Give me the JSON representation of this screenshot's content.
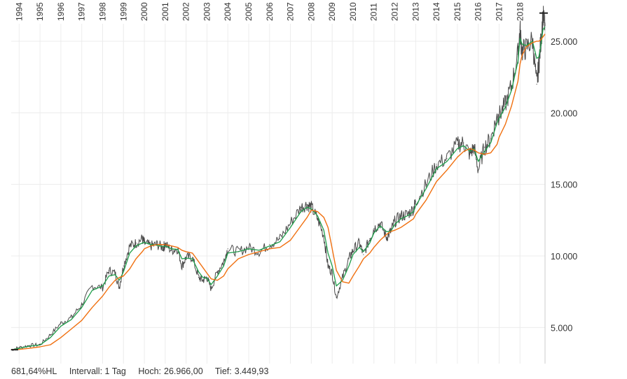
{
  "chart_data": {
    "type": "line",
    "title": "",
    "xlabel": "",
    "ylabel": "",
    "x_ticks": [
      "1994",
      "1995",
      "1996",
      "1997",
      "1998",
      "1999",
      "2000",
      "2001",
      "2002",
      "2003",
      "2004",
      "2005",
      "2006",
      "2007",
      "2008",
      "2009",
      "2010",
      "2011",
      "2012",
      "2013",
      "2014",
      "2015",
      "2016",
      "2017",
      "2018"
    ],
    "y_ticks": [
      "5.000",
      "10.000",
      "15.000",
      "20.000",
      "25.000"
    ],
    "y_tick_values": [
      5000,
      10000,
      15000,
      20000,
      25000
    ],
    "xlim": [
      1993.62,
      2019.2
    ],
    "ylim": [
      2480,
      27000
    ],
    "grid": true,
    "colors": {
      "price": "#4a4a4a",
      "sma_short": "#1e9e4a",
      "sma_long": "#f07010",
      "grid": "#ececec",
      "axis": "#222222"
    },
    "series": [
      {
        "key": "price",
        "x": [
          1993.62,
          1994.0,
          1994.5,
          1995.0,
          1995.5,
          1996.0,
          1996.5,
          1997.0,
          1997.5,
          1998.0,
          1998.3,
          1998.6,
          1998.8,
          1999.0,
          1999.3,
          1999.6,
          1999.9,
          2000.0,
          2000.3,
          2000.6,
          2000.9,
          2001.0,
          2001.3,
          2001.6,
          2001.8,
          2002.0,
          2002.3,
          2002.6,
          2002.8,
          2003.0,
          2003.2,
          2003.5,
          2003.8,
          2004.0,
          2004.5,
          2005.0,
          2005.5,
          2006.0,
          2006.5,
          2007.0,
          2007.5,
          2007.8,
          2008.0,
          2008.3,
          2008.6,
          2008.8,
          2009.0,
          2009.2,
          2009.5,
          2009.8,
          2010.0,
          2010.3,
          2010.5,
          2010.8,
          2011.0,
          2011.3,
          2011.6,
          2011.8,
          2012.0,
          2012.3,
          2012.6,
          2012.9,
          2013.0,
          2013.5,
          2014.0,
          2014.5,
          2015.0,
          2015.3,
          2015.6,
          2015.8,
          2016.0,
          2016.3,
          2016.6,
          2016.9,
          2017.0,
          2017.3,
          2017.6,
          2017.9,
          2018.0,
          2018.1,
          2018.3,
          2018.6,
          2018.8,
          2018.9,
          2019.0,
          2019.1,
          2019.2
        ],
        "y": [
          3450,
          3600,
          3750,
          3800,
          4500,
          5300,
          5700,
          6600,
          7900,
          7800,
          9000,
          8800,
          7800,
          9300,
          10700,
          10900,
          11200,
          10900,
          10700,
          10800,
          10600,
          10800,
          10400,
          10500,
          9300,
          9900,
          9900,
          8500,
          8300,
          8500,
          7700,
          8900,
          9600,
          10500,
          10300,
          10600,
          10300,
          10800,
          11200,
          12300,
          13400,
          13600,
          13400,
          12600,
          11400,
          9300,
          8800,
          7100,
          8500,
          9800,
          10400,
          10900,
          10100,
          11200,
          11900,
          12300,
          11300,
          11700,
          12400,
          12800,
          12900,
          13300,
          13800,
          15000,
          16400,
          16800,
          17800,
          17900,
          17100,
          17600,
          16000,
          17600,
          18200,
          19700,
          19800,
          20600,
          21900,
          24100,
          25800,
          24300,
          24500,
          25100,
          22000,
          23300,
          25000,
          26700,
          26100
        ]
      },
      {
        "key": "sma_short",
        "x": [
          1993.62,
          1994.0,
          1994.5,
          1995.0,
          1995.5,
          1996.0,
          1996.5,
          1997.0,
          1997.5,
          1998.0,
          1998.3,
          1998.6,
          1998.8,
          1999.0,
          1999.3,
          1999.6,
          1999.9,
          2000.0,
          2000.3,
          2000.6,
          2000.9,
          2001.0,
          2001.3,
          2001.6,
          2001.8,
          2002.0,
          2002.3,
          2002.6,
          2002.8,
          2003.0,
          2003.2,
          2003.5,
          2003.8,
          2004.0,
          2004.5,
          2005.0,
          2005.5,
          2006.0,
          2006.5,
          2007.0,
          2007.5,
          2007.8,
          2008.0,
          2008.3,
          2008.6,
          2008.8,
          2009.0,
          2009.2,
          2009.5,
          2009.8,
          2010.0,
          2010.3,
          2010.5,
          2010.8,
          2011.0,
          2011.3,
          2011.6,
          2011.8,
          2012.0,
          2012.3,
          2012.6,
          2012.9,
          2013.0,
          2013.5,
          2014.0,
          2014.5,
          2015.0,
          2015.3,
          2015.6,
          2015.8,
          2016.0,
          2016.3,
          2016.6,
          2016.9,
          2017.0,
          2017.3,
          2017.6,
          2017.9,
          2018.0,
          2018.1,
          2018.3,
          2018.6,
          2018.8,
          2018.9,
          2019.0,
          2019.1,
          2019.2
        ],
        "y": [
          3450,
          3550,
          3700,
          3780,
          4300,
          5100,
          5550,
          6400,
          7600,
          7900,
          8600,
          8700,
          8300,
          8900,
          10200,
          10700,
          10900,
          10950,
          10800,
          10750,
          10650,
          10700,
          10500,
          10450,
          9800,
          9850,
          9800,
          8900,
          8500,
          8450,
          8000,
          8600,
          9300,
          10200,
          10300,
          10500,
          10400,
          10700,
          11000,
          12000,
          13100,
          13400,
          13300,
          12800,
          11800,
          10200,
          9300,
          7900,
          8300,
          9300,
          10100,
          10600,
          10300,
          10900,
          11600,
          12100,
          11700,
          11700,
          12200,
          12600,
          12800,
          13100,
          13500,
          14700,
          16100,
          16600,
          17500,
          17700,
          17300,
          17500,
          16600,
          17300,
          17900,
          19300,
          19600,
          20400,
          21600,
          23600,
          25200,
          24800,
          24700,
          25000,
          23800,
          23900,
          24700,
          25800,
          26000
        ]
      },
      {
        "key": "sma_long",
        "x": [
          1993.62,
          1994.0,
          1994.5,
          1995.0,
          1995.5,
          1996.0,
          1996.5,
          1997.0,
          1997.5,
          1998.0,
          1998.3,
          1998.6,
          1998.8,
          1999.0,
          1999.3,
          1999.6,
          1999.9,
          2000.0,
          2000.3,
          2000.6,
          2000.9,
          2001.0,
          2001.3,
          2001.6,
          2001.8,
          2002.0,
          2002.3,
          2002.6,
          2002.8,
          2003.0,
          2003.2,
          2003.5,
          2003.8,
          2004.0,
          2004.5,
          2005.0,
          2005.5,
          2006.0,
          2006.5,
          2007.0,
          2007.5,
          2007.8,
          2008.0,
          2008.3,
          2008.6,
          2008.8,
          2009.0,
          2009.2,
          2009.5,
          2009.8,
          2010.0,
          2010.3,
          2010.5,
          2010.8,
          2011.0,
          2011.3,
          2011.6,
          2011.8,
          2012.0,
          2012.3,
          2012.6,
          2012.9,
          2013.0,
          2013.5,
          2014.0,
          2014.5,
          2015.0,
          2015.3,
          2015.6,
          2015.8,
          2016.0,
          2016.3,
          2016.6,
          2016.9,
          2017.0,
          2017.3,
          2017.6,
          2017.9,
          2018.0,
          2018.1,
          2018.3,
          2018.6,
          2018.8,
          2018.9,
          2019.0,
          2019.1,
          2019.2
        ],
        "y": [
          3450,
          3470,
          3550,
          3650,
          3800,
          4300,
          4900,
          5500,
          6400,
          7200,
          7800,
          8300,
          8500,
          8600,
          9100,
          9800,
          10300,
          10500,
          10700,
          10800,
          10800,
          10800,
          10700,
          10600,
          10400,
          10300,
          10200,
          9600,
          9200,
          8800,
          8400,
          8300,
          8600,
          9100,
          9800,
          10100,
          10300,
          10500,
          10600,
          11100,
          12100,
          12700,
          13200,
          13100,
          12700,
          12000,
          10500,
          9000,
          8200,
          8100,
          8600,
          9300,
          9800,
          10200,
          10600,
          11100,
          11500,
          11700,
          11800,
          12000,
          12300,
          12600,
          12900,
          13900,
          15200,
          16000,
          16900,
          17300,
          17500,
          17400,
          17200,
          17100,
          17200,
          17800,
          18300,
          19200,
          20500,
          22200,
          23400,
          24000,
          24600,
          24900,
          25000,
          25000,
          25100,
          25300,
          25500
        ]
      }
    ]
  },
  "status": {
    "change": "681,64%HL",
    "interval": "Intervall: 1 Tag",
    "high_label": "Hoch:",
    "high_value": "26.966,00",
    "low_label": "Tief:",
    "low_value": "3.449,93"
  }
}
